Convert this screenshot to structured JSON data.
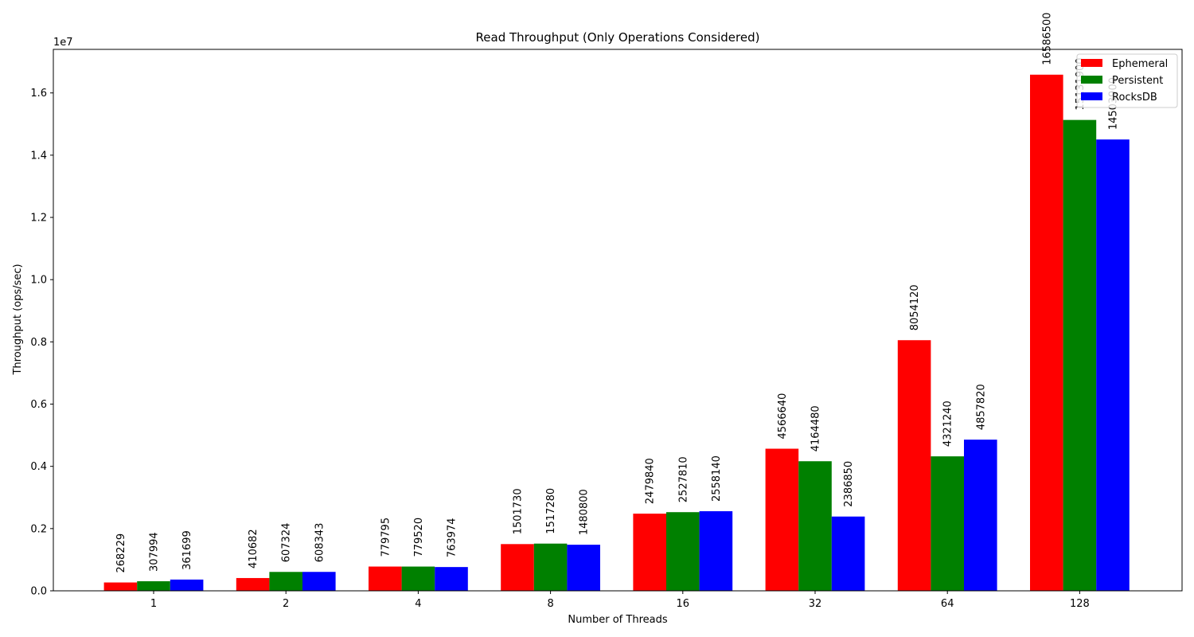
{
  "chart_data": {
    "type": "bar",
    "title": "Read Throughput (Only Operations Considered)",
    "xlabel": "Number of Threads",
    "ylabel": "Throughput (ops/sec)",
    "y_scale_label": "1e7",
    "y_tick_labels": [
      "0.0",
      "0.2",
      "0.4",
      "0.6",
      "0.8",
      "1.0",
      "1.2",
      "1.4",
      "1.6"
    ],
    "y_tick_values": [
      0,
      2000000,
      4000000,
      6000000,
      8000000,
      10000000,
      12000000,
      14000000,
      16000000
    ],
    "ylim": [
      0,
      17400000
    ],
    "categories": [
      "1",
      "2",
      "4",
      "8",
      "16",
      "32",
      "64",
      "128"
    ],
    "legend_position": "top-right",
    "grid": false,
    "series": [
      {
        "name": "Ephemeral",
        "color": "#ff0000",
        "values": [
          268229,
          410682,
          779795,
          1501730,
          2479840,
          4566640,
          8054120,
          16586500
        ],
        "labels": [
          "268229",
          "410682",
          "779795",
          "1501730",
          "2479840",
          "4566640",
          "8054120",
          "16586500"
        ]
      },
      {
        "name": "Persistent",
        "color": "#008000",
        "values": [
          307994,
          607324,
          779520,
          1517280,
          2527810,
          4164480,
          4321240,
          15131900
        ],
        "labels": [
          "307994",
          "607324",
          "779520",
          "1517280",
          "2527810",
          "4164480",
          "4321240",
          "15131900"
        ]
      },
      {
        "name": "RocksDB",
        "color": "#0000ff",
        "values": [
          361699,
          608343,
          763974,
          1480800,
          2558140,
          2386850,
          4857820,
          14503900
        ],
        "labels": [
          "361699",
          "608343",
          "763974",
          "1480800",
          "2558140",
          "2386850",
          "4857820",
          "14503900"
        ]
      }
    ]
  }
}
